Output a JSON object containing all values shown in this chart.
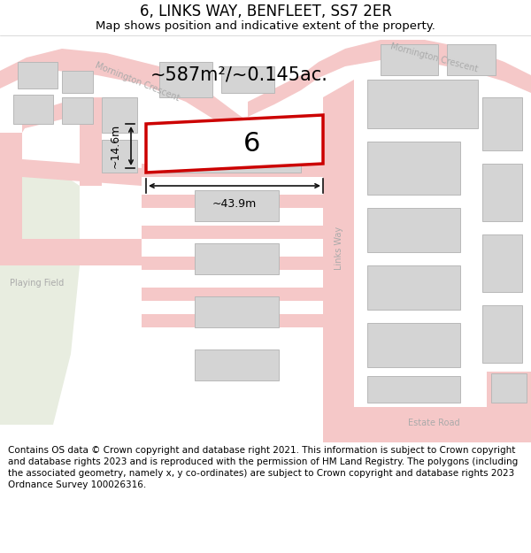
{
  "title": "6, LINKS WAY, BENFLEET, SS7 2ER",
  "subtitle": "Map shows position and indicative extent of the property.",
  "footer": "Contains OS data © Crown copyright and database right 2021. This information is subject to Crown copyright and database rights 2023 and is reproduced with the permission of HM Land Registry. The polygons (including the associated geometry, namely x, y co-ordinates) are subject to Crown copyright and database rights 2023 Ordnance Survey 100026316.",
  "area_label": "~587m²/~0.145ac.",
  "width_label": "~43.9m",
  "height_label": "~14.6m",
  "property_number": "6",
  "bg_color": "#ffffff",
  "road_color": "#f5c8c8",
  "building_color": "#d4d4d4",
  "building_outline": "#b8b8b8",
  "highlight_color": "#cc0000",
  "green_color": "#e8ede0",
  "road_label_color": "#aaaaaa",
  "dim_line_color": "#111111",
  "title_fontsize": 12,
  "subtitle_fontsize": 9.5,
  "footer_fontsize": 7.5,
  "area_fontsize": 15,
  "number_fontsize": 22,
  "dim_fontsize": 9
}
